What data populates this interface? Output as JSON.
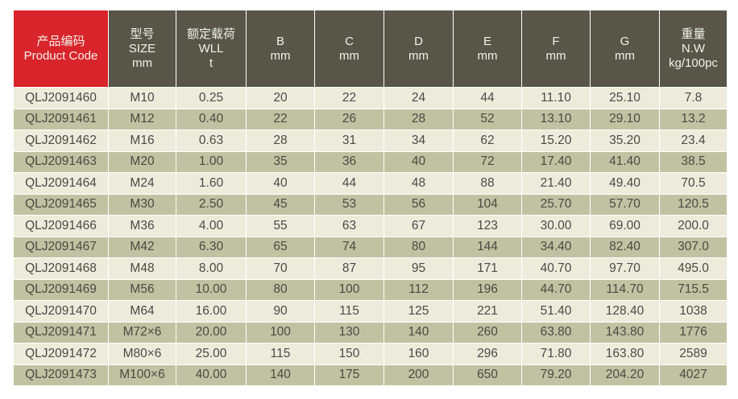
{
  "colors": {
    "header": "#575649",
    "header_highlight": "#d8242a",
    "row_light": "#edecdc",
    "row_dark": "#c1c2a1"
  },
  "headers": [
    [
      "产品编码",
      "Product Code"
    ],
    [
      "型号",
      "SIZE",
      "mm"
    ],
    [
      "额定载荷",
      "WLL",
      "t"
    ],
    [
      "B",
      "mm"
    ],
    [
      "C",
      "mm"
    ],
    [
      "D",
      "mm"
    ],
    [
      "E",
      "mm"
    ],
    [
      "F",
      "mm"
    ],
    [
      "G",
      "mm"
    ],
    [
      "重量",
      "N.W",
      "kg/100pc"
    ]
  ],
  "rows": [
    [
      "QLJ2091460",
      "M10",
      "0.25",
      "20",
      "22",
      "24",
      "44",
      "11.10",
      "25.10",
      "7.8"
    ],
    [
      "QLJ2091461",
      "M12",
      "0.40",
      "22",
      "26",
      "28",
      "52",
      "13.10",
      "29.10",
      "13.2"
    ],
    [
      "QLJ2091462",
      "M16",
      "0.63",
      "28",
      "31",
      "34",
      "62",
      "15.20",
      "35.20",
      "23.4"
    ],
    [
      "QLJ2091463",
      "M20",
      "1.00",
      "35",
      "36",
      "40",
      "72",
      "17.40",
      "41.40",
      "38.5"
    ],
    [
      "QLJ2091464",
      "M24",
      "1.60",
      "40",
      "44",
      "48",
      "88",
      "21.40",
      "49.40",
      "70.5"
    ],
    [
      "QLJ2091465",
      "M30",
      "2.50",
      "45",
      "53",
      "56",
      "104",
      "25.70",
      "57.70",
      "120.5"
    ],
    [
      "QLJ2091466",
      "M36",
      "4.00",
      "55",
      "63",
      "67",
      "123",
      "30.00",
      "69.00",
      "200.0"
    ],
    [
      "QLJ2091467",
      "M42",
      "6.30",
      "65",
      "74",
      "80",
      "144",
      "34.40",
      "82.40",
      "307.0"
    ],
    [
      "QLJ2091468",
      "M48",
      "8.00",
      "70",
      "87",
      "95",
      "171",
      "40.70",
      "97.70",
      "495.0"
    ],
    [
      "QLJ2091469",
      "M56",
      "10.00",
      "80",
      "100",
      "112",
      "196",
      "44.70",
      "114.70",
      "715.5"
    ],
    [
      "QLJ2091470",
      "M64",
      "16.00",
      "90",
      "115",
      "125",
      "221",
      "51.40",
      "128.40",
      "1038"
    ],
    [
      "QLJ2091471",
      "M72×6",
      "20.00",
      "100",
      "130",
      "140",
      "260",
      "63.80",
      "143.80",
      "1776"
    ],
    [
      "QLJ2091472",
      "M80×6",
      "25.00",
      "115",
      "150",
      "160",
      "296",
      "71.80",
      "163.80",
      "2589"
    ],
    [
      "QLJ2091473",
      "M100×6",
      "40.00",
      "140",
      "175",
      "200",
      "650",
      "79.20",
      "204.20",
      "4027"
    ]
  ]
}
